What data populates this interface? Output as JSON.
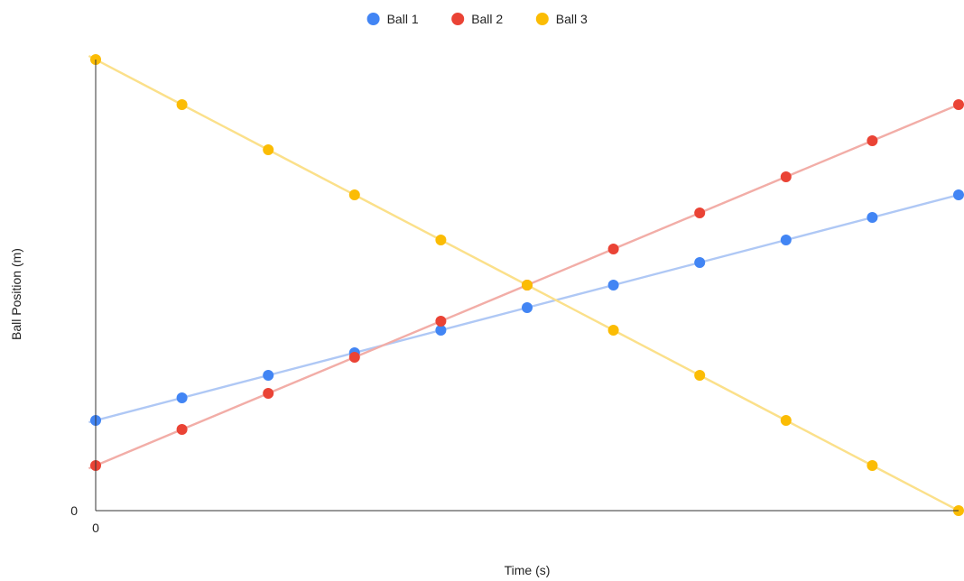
{
  "chart_data": {
    "type": "line",
    "title": "",
    "xlabel": "Time (s)",
    "ylabel": "Ball Position (m)",
    "x_tick_labels": [
      "0"
    ],
    "y_tick_labels": [
      "0"
    ],
    "x": [
      0,
      1,
      2,
      3,
      4,
      5,
      6,
      7,
      8,
      9,
      10
    ],
    "xlim": [
      0,
      10
    ],
    "ylim": [
      0,
      10
    ],
    "grid": false,
    "legend_position": "top",
    "series": [
      {
        "name": "Ball 1",
        "color": "#4285F4",
        "line_color": "#AFC8F5",
        "values": [
          2,
          2.5,
          3,
          3.5,
          4,
          4.5,
          5,
          5.5,
          6,
          6.5,
          7
        ]
      },
      {
        "name": "Ball 2",
        "color": "#EA4335",
        "line_color": "#F2ADA7",
        "values": [
          1,
          1.8,
          2.6,
          3.4,
          4.2,
          5,
          5.8,
          6.6,
          7.4,
          8.2,
          9
        ]
      },
      {
        "name": "Ball 3",
        "color": "#FBBC04",
        "line_color": "#FBE08A",
        "values": [
          10,
          9,
          8,
          7,
          6,
          5,
          4,
          3,
          2,
          1,
          0
        ]
      }
    ]
  }
}
